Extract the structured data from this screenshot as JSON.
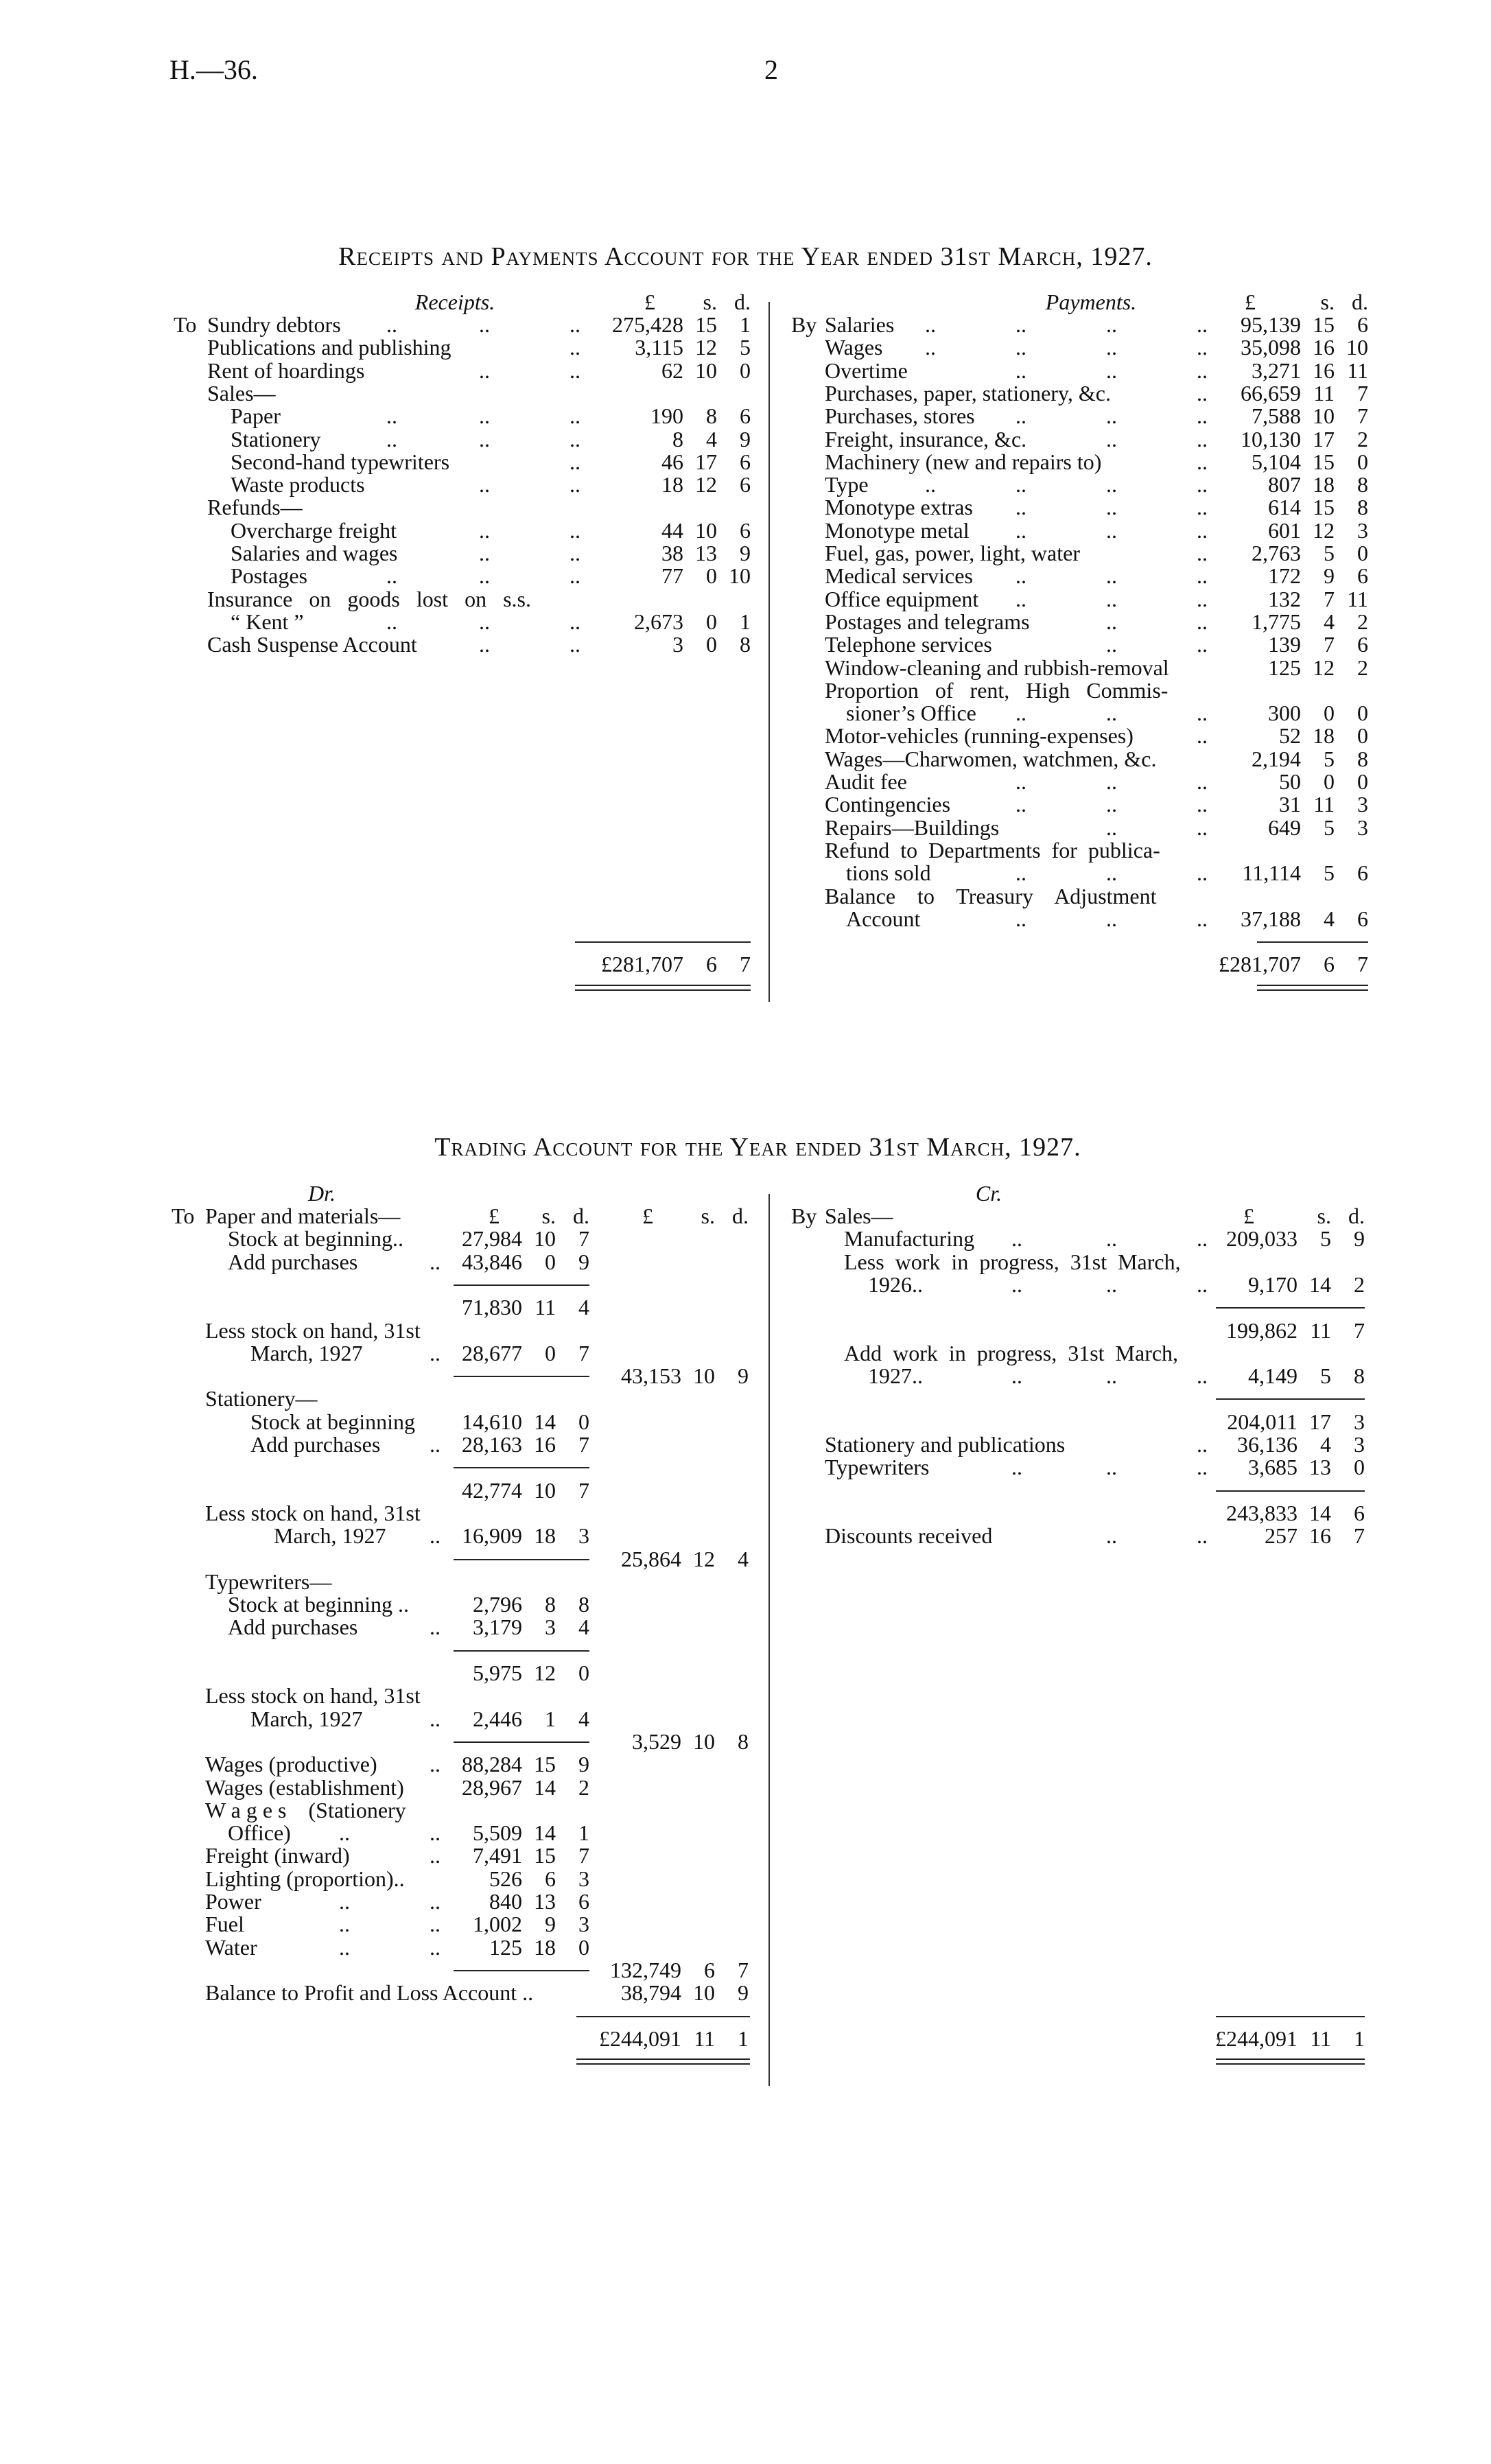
{
  "header": {
    "code": "H.—36.",
    "page_number": "2"
  },
  "receipts_payments": {
    "title": "Receipts and Payments Account for the Year ended 31st March, 1927.",
    "receipts": {
      "heading": "Receipts.",
      "pound": "£",
      "shillings": "s.",
      "pence": "d.",
      "rows": [
        {
          "prefix": "To",
          "label": "Sundry debtors",
          "level": 0,
          "leaders": ".. .. ..",
          "amount": [
            "275,428",
            "15",
            "1"
          ]
        },
        {
          "label": "Publications and publishing",
          "level": 0,
          "leaders": "..",
          "amount": [
            "3,115",
            "12",
            "5"
          ]
        },
        {
          "label": "Rent of hoardings",
          "level": 0,
          "leaders": ".. ..",
          "amount": [
            "62",
            "10",
            "0"
          ]
        },
        {
          "label": "Sales—",
          "level": 0
        },
        {
          "label": "Paper",
          "level": 1,
          "leaders": ".. .. ..",
          "amount": [
            "190",
            "8",
            "6"
          ]
        },
        {
          "label": "Stationery",
          "level": 1,
          "leaders": ".. .. ..",
          "amount": [
            "8",
            "4",
            "9"
          ]
        },
        {
          "label": "Second-hand typewriters",
          "level": 1,
          "leaders": "..",
          "amount": [
            "46",
            "17",
            "6"
          ]
        },
        {
          "label": "Waste products",
          "level": 1,
          "leaders": ".. ..",
          "amount": [
            "18",
            "12",
            "6"
          ]
        },
        {
          "label": "Refunds—",
          "level": 0
        },
        {
          "label": "Overcharge freight",
          "level": 1,
          "leaders": ".. ..",
          "amount": [
            "44",
            "10",
            "6"
          ]
        },
        {
          "label": "Salaries and wages",
          "level": 1,
          "leaders": ".. ..",
          "amount": [
            "38",
            "13",
            "9"
          ]
        },
        {
          "label": "Postages",
          "level": 1,
          "leaders": ".. .. ..",
          "amount": [
            "77",
            "0",
            "10"
          ]
        },
        {
          "label": "Insurance   on   goods   lost   on   s.s.",
          "level": 0
        },
        {
          "label": "“ Kent ”",
          "level": 1,
          "leaders": ".. .. ..",
          "amount": [
            "2,673",
            "0",
            "1"
          ]
        },
        {
          "label": "Cash Suspense Account",
          "level": 0,
          "leaders": ".. ..",
          "amount": [
            "3",
            "0",
            "8"
          ]
        }
      ],
      "total": [
        "£281,707",
        "6",
        "7"
      ]
    },
    "payments": {
      "heading": "Payments.",
      "pound": "£",
      "shillings": "s.",
      "pence": "d.",
      "rows": [
        {
          "prefix": "By",
          "label": "Salaries",
          "level": 0,
          "leaders": ".. .. .. ..",
          "amount": [
            "95,139",
            "15",
            "6"
          ]
        },
        {
          "label": "Wages",
          "level": 0,
          "leaders": ".. .. .. ..",
          "amount": [
            "35,098",
            "16",
            "10"
          ]
        },
        {
          "label": "Overtime",
          "level": 0,
          "leaders": ".. .. ..",
          "amount": [
            "3,271",
            "16",
            "11"
          ]
        },
        {
          "label": "Purchases, paper, stationery, &c.",
          "level": 0,
          "leaders": "..",
          "amount": [
            "66,659",
            "11",
            "7"
          ]
        },
        {
          "label": "Purchases, stores",
          "level": 0,
          "leaders": ".. .. ..",
          "amount": [
            "7,588",
            "10",
            "7"
          ]
        },
        {
          "label": "Freight, insurance, &c.",
          "level": 0,
          "leaders": ".. ..",
          "amount": [
            "10,130",
            "17",
            "2"
          ]
        },
        {
          "label": "Machinery (new and repairs to)",
          "level": 0,
          "leaders": "..",
          "amount": [
            "5,104",
            "15",
            "0"
          ]
        },
        {
          "label": "Type",
          "level": 0,
          "leaders": ".. .. .. ..",
          "amount": [
            "807",
            "18",
            "8"
          ]
        },
        {
          "label": "Monotype extras",
          "level": 0,
          "leaders": ".. .. ..",
          "amount": [
            "614",
            "15",
            "8"
          ]
        },
        {
          "label": "Monotype metal",
          "level": 0,
          "leaders": ".. .. ..",
          "amount": [
            "601",
            "12",
            "3"
          ]
        },
        {
          "label": "Fuel, gas, power, light, water",
          "level": 0,
          "leaders": "..",
          "amount": [
            "2,763",
            "5",
            "0"
          ]
        },
        {
          "label": "Medical services",
          "level": 0,
          "leaders": ".. .. ..",
          "amount": [
            "172",
            "9",
            "6"
          ]
        },
        {
          "label": "Office equipment",
          "level": 0,
          "leaders": ".. .. ..",
          "amount": [
            "132",
            "7",
            "11"
          ]
        },
        {
          "label": "Postages and telegrams",
          "level": 0,
          "leaders": ".. ..",
          "amount": [
            "1,775",
            "4",
            "2"
          ]
        },
        {
          "label": "Telephone services",
          "level": 0,
          "leaders": ".. ..",
          "amount": [
            "139",
            "7",
            "6"
          ]
        },
        {
          "label": "Window-cleaning and rubbish-removal",
          "level": 0,
          "amount": [
            "125",
            "12",
            "2"
          ]
        },
        {
          "label": "Proportion   of   rent,   High   Commis-",
          "level": 0
        },
        {
          "label": "sioner’s Office",
          "level": 1,
          "leaders": ".. .. ..",
          "amount": [
            "300",
            "0",
            "0"
          ]
        },
        {
          "label": "Motor-vehicles (running-expenses)",
          "level": 0,
          "leaders": "..",
          "amount": [
            "52",
            "18",
            "0"
          ]
        },
        {
          "label": "Wages—Charwomen, watchmen, &c.",
          "level": 0,
          "amount": [
            "2,194",
            "5",
            "8"
          ]
        },
        {
          "label": "Audit fee",
          "level": 0,
          "leaders": ".. .. ..",
          "amount": [
            "50",
            "0",
            "0"
          ]
        },
        {
          "label": "Contingencies",
          "level": 0,
          "leaders": ".. .. ..",
          "amount": [
            "31",
            "11",
            "3"
          ]
        },
        {
          "label": "Repairs—Buildings",
          "level": 0,
          "leaders": ".. ..",
          "amount": [
            "649",
            "5",
            "3"
          ]
        },
        {
          "label": "Refund  to  Departments  for  publica-",
          "level": 0
        },
        {
          "label": "tions sold",
          "level": 1,
          "leaders": ".. .. ..",
          "amount": [
            "11,114",
            "5",
            "6"
          ]
        },
        {
          "label": "Balance    to    Treasury    Adjustment",
          "level": 0
        },
        {
          "label": "Account",
          "level": 1,
          "leaders": ".. .. ..",
          "amount": [
            "37,188",
            "4",
            "6"
          ]
        }
      ],
      "total": [
        "£281,707",
        "6",
        "7"
      ]
    }
  },
  "trading": {
    "title": "Trading Account for the Year ended 31st March, 1927.",
    "dr": {
      "heading": "Dr.",
      "column_headers": {
        "inner": [
          "£",
          "s.",
          "d."
        ],
        "outer": [
          "£",
          "s.",
          "d."
        ]
      },
      "rows": [
        {
          "prefix": "To",
          "label": "Paper and materials—",
          "level": 0,
          "headers": true
        },
        {
          "label": "Stock at beginning..",
          "level": 1,
          "inner": [
            "27,984",
            "10",
            "7"
          ]
        },
        {
          "label": "Add purchases",
          "level": 1,
          "leaders": "..",
          "inner": [
            "43,846",
            "0",
            "9"
          ]
        },
        {
          "rule": "inner"
        },
        {
          "inner": [
            "71,830",
            "11",
            "4"
          ]
        },
        {
          "label": "Less stock on hand, 31st",
          "level": 0
        },
        {
          "label": "March, 1927",
          "level": 2,
          "leaders": "..",
          "inner": [
            "28,677",
            "0",
            "7"
          ]
        },
        {
          "rule": "inner",
          "outer": [
            "43,153",
            "10",
            "9"
          ]
        },
        {
          "label": "Stationery—",
          "level": 0
        },
        {
          "label": "Stock at beginning",
          "level": 2,
          "inner": [
            "14,610",
            "14",
            "0"
          ]
        },
        {
          "label": "Add purchases",
          "level": 2,
          "leaders": "..",
          "inner": [
            "28,163",
            "16",
            "7"
          ]
        },
        {
          "rule": "inner"
        },
        {
          "inner": [
            "42,774",
            "10",
            "7"
          ]
        },
        {
          "label": "Less stock on hand, 31st",
          "level": 0
        },
        {
          "label": "March, 1927",
          "level": 3,
          "leaders": "..",
          "inner": [
            "16,909",
            "18",
            "3"
          ]
        },
        {
          "rule": "inner",
          "outer": [
            "25,864",
            "12",
            "4"
          ]
        },
        {
          "label": "Typewriters—",
          "level": 0
        },
        {
          "label": "Stock at beginning ..",
          "level": 1,
          "inner": [
            "2,796",
            "8",
            "8"
          ]
        },
        {
          "label": "Add purchases",
          "level": 1,
          "leaders": "..",
          "inner": [
            "3,179",
            "3",
            "4"
          ]
        },
        {
          "rule": "inner"
        },
        {
          "inner": [
            "5,975",
            "12",
            "0"
          ]
        },
        {
          "label": "Less stock on hand, 31st",
          "level": 0
        },
        {
          "label": "March, 1927",
          "level": 2,
          "leaders": "..",
          "inner": [
            "2,446",
            "1",
            "4"
          ]
        },
        {
          "rule": "inner",
          "outer": [
            "3,529",
            "10",
            "8"
          ]
        },
        {
          "label": "Wages (productive)",
          "level": 0,
          "leaders": "..",
          "inner": [
            "88,284",
            "15",
            "9"
          ]
        },
        {
          "label": "Wages (establishment)",
          "level": 0,
          "inner": [
            "28,967",
            "14",
            "2"
          ]
        },
        {
          "label": "W a g e s    (Stationery",
          "level": 0
        },
        {
          "label": "Office)",
          "level": 1,
          "leaders": ".. ..",
          "inner": [
            "5,509",
            "14",
            "1"
          ]
        },
        {
          "label": "Freight (inward)",
          "level": 0,
          "leaders": "..",
          "inner": [
            "7,491",
            "15",
            "7"
          ]
        },
        {
          "label": "Lighting (proportion)..",
          "level": 0,
          "inner": [
            "526",
            "6",
            "3"
          ]
        },
        {
          "label": "Power",
          "level": 0,
          "leaders": ".. ..",
          "inner": [
            "840",
            "13",
            "6"
          ]
        },
        {
          "label": "Fuel",
          "level": 0,
          "leaders": ".. ..",
          "inner": [
            "1,002",
            "9",
            "3"
          ]
        },
        {
          "label": "Water",
          "level": 0,
          "leaders": ".. ..",
          "inner": [
            "125",
            "18",
            "0"
          ]
        },
        {
          "rule": "inner",
          "outer": [
            "132,749",
            "6",
            "7"
          ]
        },
        {
          "label": "Balance to Profit and Loss Account ..",
          "level": 0,
          "outer": [
            "38,794",
            "10",
            "9"
          ]
        }
      ],
      "total": [
        "£244,091",
        "11",
        "1"
      ]
    },
    "cr": {
      "heading": "Cr.",
      "column_headers": [
        "£",
        "s.",
        "d."
      ],
      "rows": [
        {
          "prefix": "By",
          "label": "Sales—",
          "level": 0,
          "headers": true
        },
        {
          "label": "Manufacturing",
          "level": 1,
          "leaders": ".. .. ..",
          "amount": [
            "209,033",
            "5",
            "9"
          ]
        },
        {
          "label": "Less  work  in  progress,  31st  March,",
          "level": 1
        },
        {
          "label": "1926..",
          "level": 2,
          "leaders": ".. .. ..",
          "amount": [
            "9,170",
            "14",
            "2"
          ]
        },
        {
          "rule": "amount"
        },
        {
          "amount": [
            "199,862",
            "11",
            "7"
          ]
        },
        {
          "label": "Add  work  in  progress,  31st  March,",
          "level": 1
        },
        {
          "label": "1927..",
          "level": 2,
          "leaders": ".. .. ..",
          "amount": [
            "4,149",
            "5",
            "8"
          ]
        },
        {
          "rule": "amount"
        },
        {
          "amount": [
            "204,011",
            "17",
            "3"
          ]
        },
        {
          "label": "Stationery and publications",
          "level": 0,
          "leaders": "..",
          "amount": [
            "36,136",
            "4",
            "3"
          ]
        },
        {
          "label": "Typewriters",
          "level": 0,
          "leaders": ".. .. ..",
          "amount": [
            "3,685",
            "13",
            "0"
          ]
        },
        {
          "rule": "amount"
        },
        {
          "amount": [
            "243,833",
            "14",
            "6"
          ]
        },
        {
          "label": "Discounts received",
          "level": 0,
          "leaders": ".. ..",
          "amount": [
            "257",
            "16",
            "7"
          ]
        }
      ],
      "total": [
        "£244,091",
        "11",
        "1"
      ]
    }
  }
}
